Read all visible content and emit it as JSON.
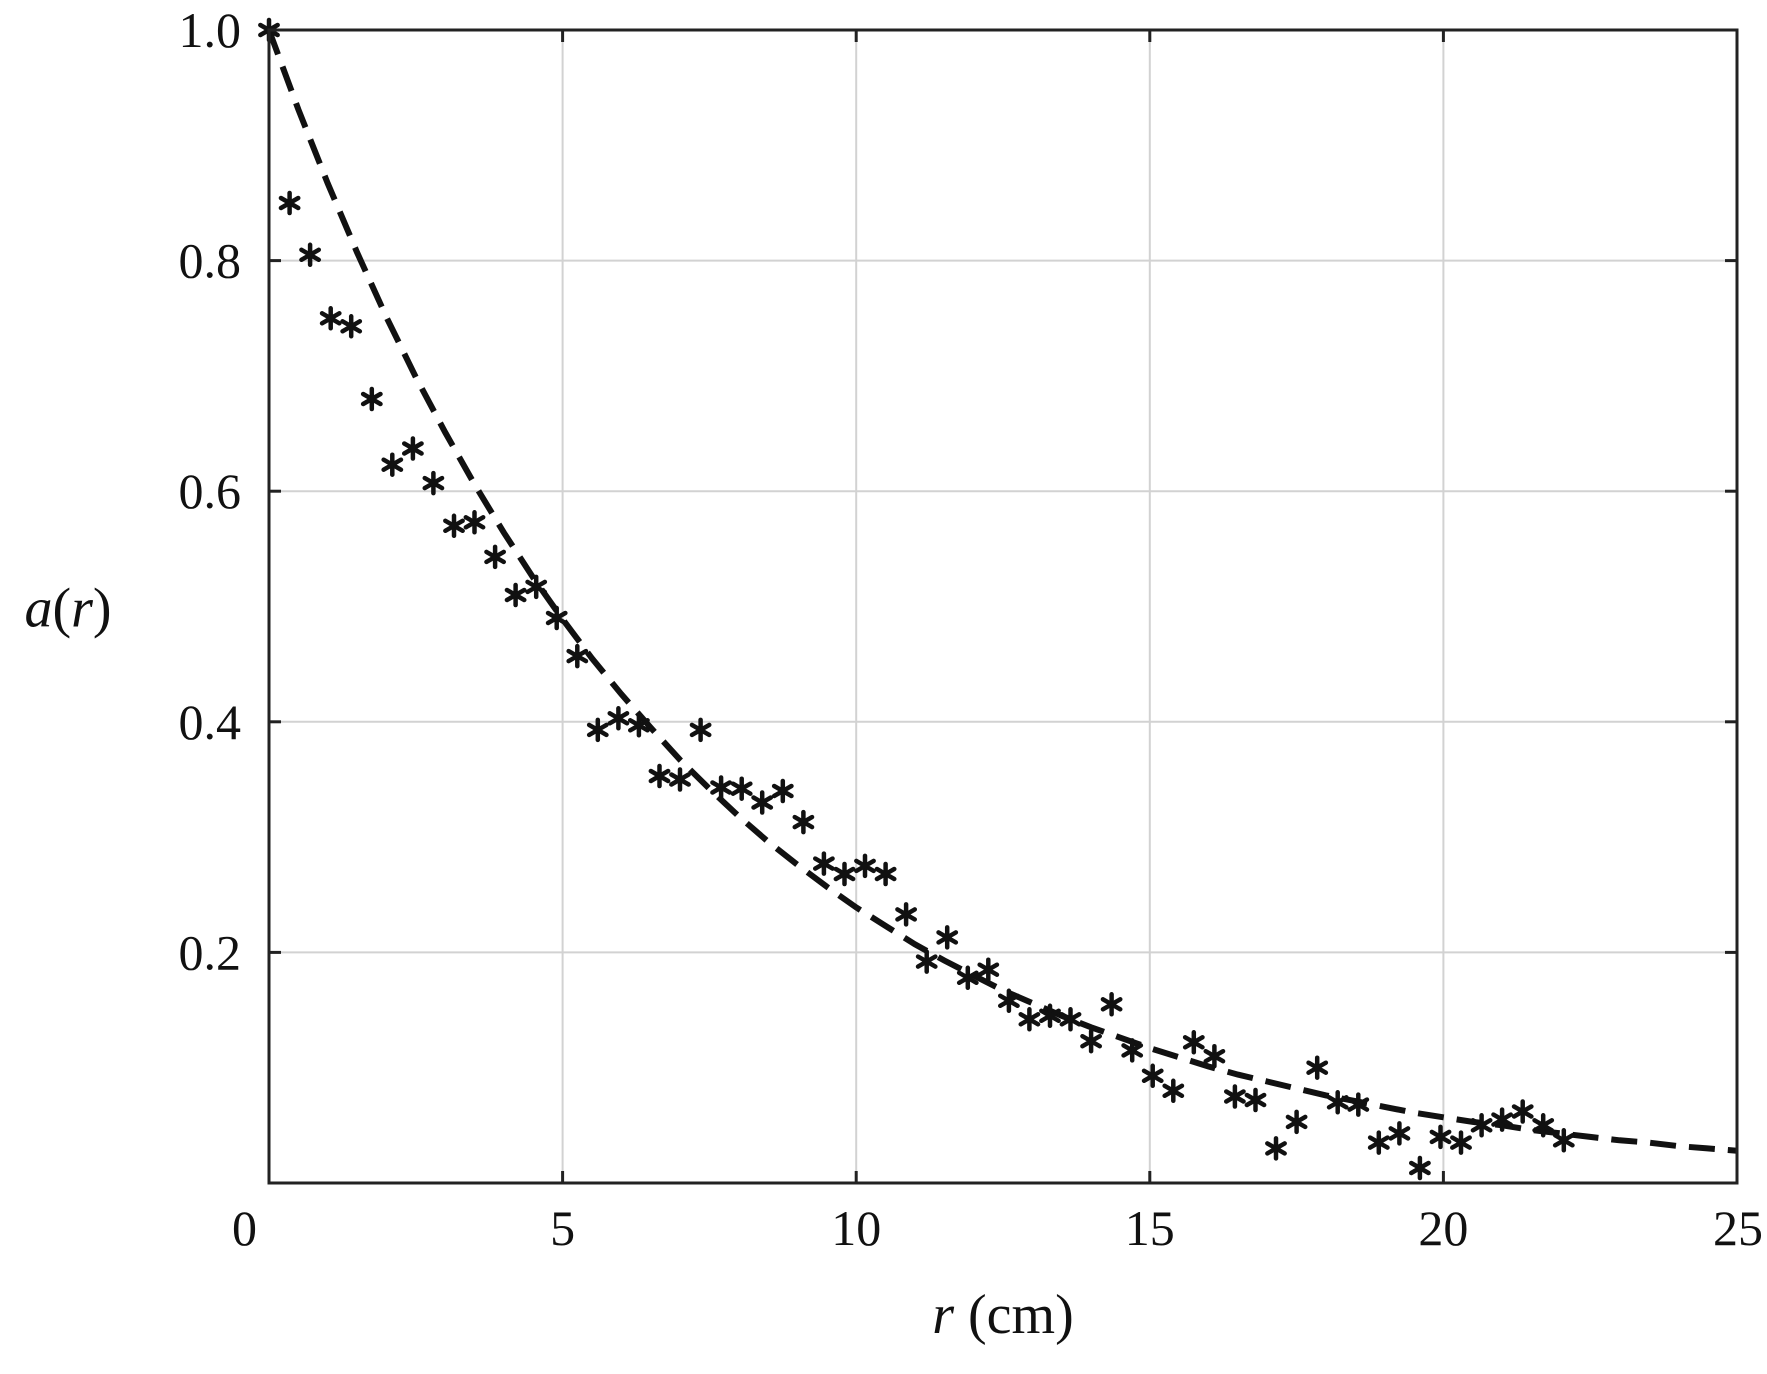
{
  "chart_data": {
    "type": "scatter",
    "xlabel": {
      "var": "r",
      "unit": " (cm)"
    },
    "ylabel": {
      "fn": "a",
      "open": "(",
      "var": "r",
      "close": ")"
    },
    "xlim": [
      0,
      25
    ],
    "ylim": [
      0,
      1.0
    ],
    "x_ticks": [
      0,
      5,
      10,
      15,
      20,
      25
    ],
    "x_tick_labels": [
      "0",
      "5",
      "10",
      "15",
      "20",
      "25"
    ],
    "y_ticks": [
      0.2,
      0.4,
      0.6,
      0.8,
      1.0
    ],
    "y_tick_labels": [
      "0.2",
      "0.4",
      "0.6",
      "0.8",
      "1.0"
    ],
    "grid": true,
    "series": [
      {
        "kind": "markers",
        "marker": "asterisk",
        "color": "#111111",
        "points": [
          [
            0.0,
            1.0
          ],
          [
            0.35,
            0.85
          ],
          [
            0.7,
            0.805
          ],
          [
            1.05,
            0.75
          ],
          [
            1.4,
            0.743
          ],
          [
            1.75,
            0.68
          ],
          [
            2.1,
            0.623
          ],
          [
            2.45,
            0.637
          ],
          [
            2.8,
            0.607
          ],
          [
            3.15,
            0.57
          ],
          [
            3.5,
            0.573
          ],
          [
            3.85,
            0.543
          ],
          [
            4.2,
            0.51
          ],
          [
            4.55,
            0.517
          ],
          [
            4.9,
            0.49
          ],
          [
            5.25,
            0.457
          ],
          [
            5.6,
            0.393
          ],
          [
            5.95,
            0.403
          ],
          [
            6.3,
            0.397
          ],
          [
            6.65,
            0.353
          ],
          [
            7.0,
            0.35
          ],
          [
            7.35,
            0.393
          ],
          [
            7.7,
            0.343
          ],
          [
            8.05,
            0.342
          ],
          [
            8.4,
            0.33
          ],
          [
            8.75,
            0.34
          ],
          [
            9.1,
            0.313
          ],
          [
            9.45,
            0.277
          ],
          [
            9.8,
            0.268
          ],
          [
            10.15,
            0.275
          ],
          [
            10.5,
            0.268
          ],
          [
            10.85,
            0.233
          ],
          [
            11.2,
            0.192
          ],
          [
            11.55,
            0.213
          ],
          [
            11.9,
            0.178
          ],
          [
            12.25,
            0.185
          ],
          [
            12.6,
            0.158
          ],
          [
            12.95,
            0.142
          ],
          [
            13.3,
            0.145
          ],
          [
            13.65,
            0.142
          ],
          [
            14.0,
            0.123
          ],
          [
            14.35,
            0.155
          ],
          [
            14.7,
            0.115
          ],
          [
            15.05,
            0.093
          ],
          [
            15.4,
            0.08
          ],
          [
            15.75,
            0.122
          ],
          [
            16.1,
            0.11
          ],
          [
            16.45,
            0.075
          ],
          [
            16.8,
            0.072
          ],
          [
            17.15,
            0.03
          ],
          [
            17.5,
            0.053
          ],
          [
            17.85,
            0.1
          ],
          [
            18.2,
            0.07
          ],
          [
            18.55,
            0.068
          ],
          [
            18.9,
            0.035
          ],
          [
            19.25,
            0.043
          ],
          [
            19.6,
            0.013
          ],
          [
            19.95,
            0.04
          ],
          [
            20.3,
            0.035
          ],
          [
            20.65,
            0.05
          ],
          [
            21.0,
            0.055
          ],
          [
            21.35,
            0.062
          ],
          [
            21.7,
            0.05
          ],
          [
            22.05,
            0.037
          ]
        ]
      },
      {
        "kind": "line",
        "style": "dashed",
        "color": "#111111",
        "x": [
          0,
          0.5,
          1,
          1.5,
          2,
          2.5,
          3,
          3.5,
          4,
          4.5,
          5,
          5.5,
          6,
          6.5,
          7,
          7.5,
          8,
          8.5,
          9,
          9.5,
          10,
          10.5,
          11,
          11.5,
          12,
          12.5,
          13,
          13.5,
          14,
          14.5,
          15,
          15.5,
          16,
          16.5,
          17,
          17.5,
          18,
          18.5,
          19,
          19.5,
          20,
          20.5,
          21,
          21.5,
          22,
          22.5,
          23,
          23.5,
          24,
          24.5,
          25
        ],
        "y": [
          1.0,
          0.931,
          0.867,
          0.807,
          0.751,
          0.699,
          0.651,
          0.606,
          0.564,
          0.525,
          0.489,
          0.455,
          0.424,
          0.395,
          0.367,
          0.342,
          0.318,
          0.296,
          0.276,
          0.257,
          0.239,
          0.223,
          0.207,
          0.193,
          0.18,
          0.167,
          0.156,
          0.145,
          0.135,
          0.126,
          0.117,
          0.109,
          0.101,
          0.094,
          0.088,
          0.082,
          0.076,
          0.071,
          0.066,
          0.061,
          0.057,
          0.053,
          0.05,
          0.046,
          0.043,
          0.04,
          0.037,
          0.035,
          0.032,
          0.03,
          0.028
        ]
      }
    ]
  }
}
